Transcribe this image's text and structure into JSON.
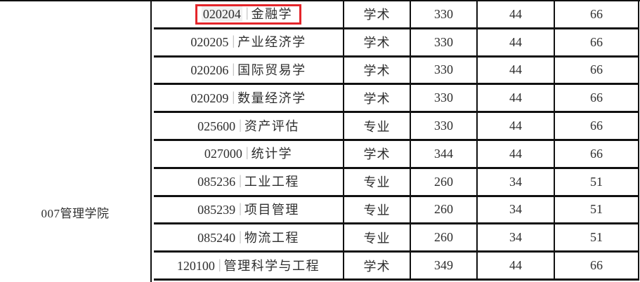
{
  "colors": {
    "border_line": "#101010",
    "text": "#2e2e2e",
    "pipe_separator": "#b4b4b4",
    "highlight_box": "#e4252a",
    "highlighted_code_background": "#f0f0f0"
  },
  "college": {
    "label": "007管理学院"
  },
  "table": {
    "pipe_separator": "|",
    "rows": [
      {
        "code": "020204",
        "name": "金融学",
        "type": "学术",
        "scores": [
          "330",
          "44",
          "66"
        ],
        "highlighted": true
      },
      {
        "code": "020205",
        "name": "产业经济学",
        "type": "学术",
        "scores": [
          "330",
          "44",
          "66"
        ],
        "highlighted": false
      },
      {
        "code": "020206",
        "name": "国际贸易学",
        "type": "学术",
        "scores": [
          "330",
          "44",
          "66"
        ],
        "highlighted": false
      },
      {
        "code": "020209",
        "name": "数量经济学",
        "type": "学术",
        "scores": [
          "330",
          "44",
          "66"
        ],
        "highlighted": false
      },
      {
        "code": "025600",
        "name": "资产评估",
        "type": "专业",
        "scores": [
          "330",
          "44",
          "66"
        ],
        "highlighted": false
      },
      {
        "code": "027000",
        "name": "统计学",
        "type": "学术",
        "scores": [
          "344",
          "44",
          "66"
        ],
        "highlighted": false
      },
      {
        "code": "085236",
        "name": "工业工程",
        "type": "专业",
        "scores": [
          "260",
          "34",
          "51"
        ],
        "highlighted": false
      },
      {
        "code": "085239",
        "name": "项目管理",
        "type": "专业",
        "scores": [
          "260",
          "34",
          "51"
        ],
        "highlighted": false
      },
      {
        "code": "085240",
        "name": "物流工程",
        "type": "专业",
        "scores": [
          "260",
          "34",
          "51"
        ],
        "highlighted": false
      },
      {
        "code": "120100",
        "name": "管理科学与工程",
        "type": "学术",
        "scores": [
          "349",
          "44",
          "66"
        ],
        "highlighted": false
      }
    ]
  }
}
